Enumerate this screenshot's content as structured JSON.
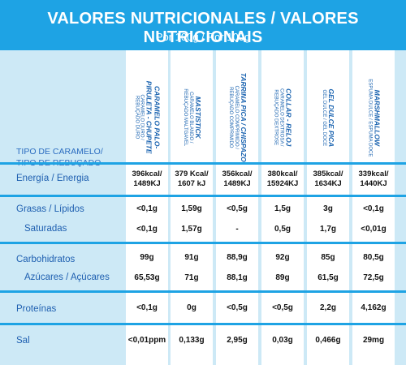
{
  "title": "VALORES NUTRICIONALES / VALORES NUTRICIONAIS",
  "subtitle": "Por 100g / Por 100g",
  "type_label": [
    "TIPO DE CARAMELO/",
    "TIPO DE REBUÇADO"
  ],
  "products": [
    {
      "name": "CARAMELO PALO-",
      "name2": "PIRULETA - CHUPETE",
      "sub": "CARAMELO DURO /",
      "sub2": "REBUÇADO DURO"
    },
    {
      "name": "MASTISTICK",
      "name2": "",
      "sub": "CARAMELO BLANDO /",
      "sub2": "REBUÇADO MALTGAVEL"
    },
    {
      "name": "TARRINA PICA / CHISPAZO",
      "name2": "",
      "sub": "CARAMELO COMPRIMIDO /",
      "sub2": "REBUÇADO COMPRIMIDO"
    },
    {
      "name": "COLLAR - RELOJ",
      "name2": "",
      "sub": "CARAMELO DEXTROSA /",
      "sub2": "REBUÇADO DEXTROSE"
    },
    {
      "name": "GEL DULCE PICA",
      "name2": "",
      "sub": "GEL DULCE / GEL DOCE",
      "sub2": ""
    },
    {
      "name": "MARSHMALLOW",
      "name2": "",
      "sub": "ESPUMA DULCE / ESPUMA DOCE",
      "sub2": ""
    }
  ],
  "rows": {
    "energy": {
      "label": "Energía / Energia",
      "values": [
        [
          "396kcal/",
          "1489KJ"
        ],
        [
          "379 Kcal/",
          "1607 kJ"
        ],
        [
          "356kcal/",
          "1489KJ"
        ],
        [
          "380kcal/",
          "15924KJ"
        ],
        [
          "385kcal/",
          "1634KJ"
        ],
        [
          "339kcal/",
          "1440KJ"
        ]
      ]
    },
    "fat": {
      "label": "Grasas / Lípidos",
      "values": [
        "<0,1g",
        "1,59g",
        "<0,5g",
        "1,5g",
        "3g",
        "<0,1g"
      ]
    },
    "saturated": {
      "label": "Saturadas",
      "values": [
        "<0,1g",
        "1,57g",
        "-",
        "0,5g",
        "1,7g",
        "<0,01g"
      ]
    },
    "carbs": {
      "label": "Carbohidratos",
      "values": [
        "99g",
        "91g",
        "88,9g",
        "92g",
        "85g",
        "80,5g"
      ]
    },
    "sugars": {
      "label": "Azúcares / Açúcares",
      "values": [
        "65,53g",
        "71g",
        "88,1g",
        "89g",
        "61,5g",
        "72,5g"
      ]
    },
    "protein": {
      "label": "Proteínas",
      "values": [
        "<0,1g",
        "0g",
        "<0,5g",
        "<0,5g",
        "2,2g",
        "4,162g"
      ]
    },
    "salt": {
      "label": "Sal",
      "values": [
        "<0,01ppm",
        "0,133g",
        "2,95g",
        "0,03g",
        "0,466g",
        "29mg"
      ]
    }
  }
}
